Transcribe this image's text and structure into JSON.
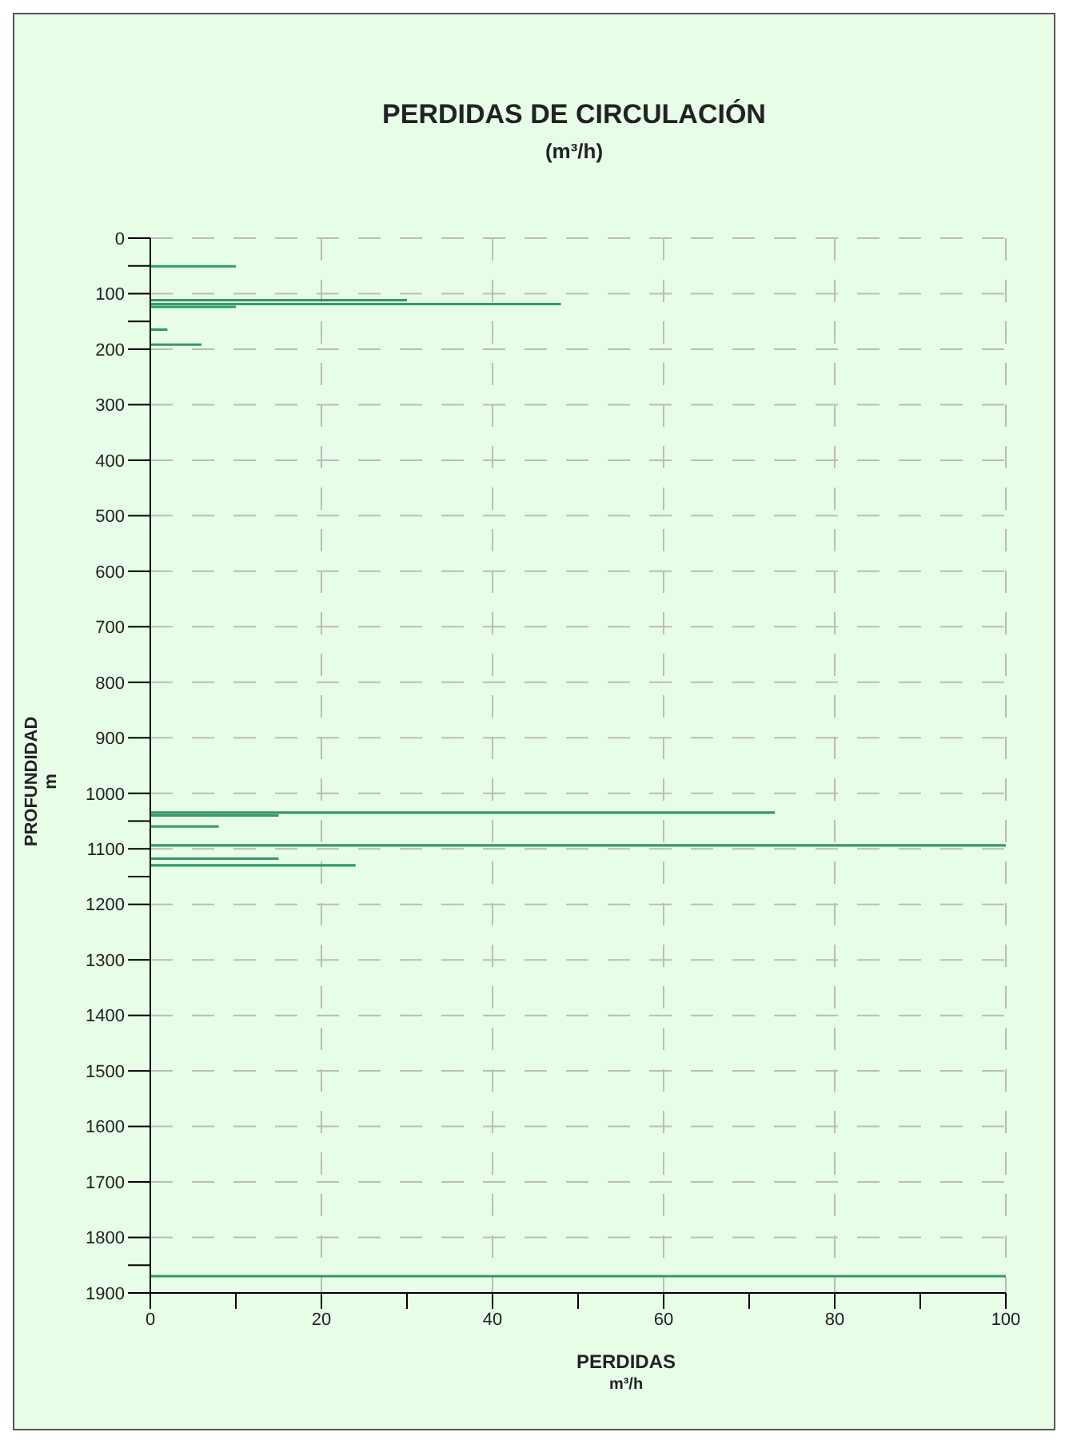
{
  "chart_data": {
    "type": "bar",
    "orientation": "horizontal",
    "title": "PERDIDAS DE CIRCULACIÓN",
    "subtitle": "(m³/h)",
    "xlabel": "PERDIDAS\nm³/h",
    "ylabel": "PROFUNDIDAD\nm",
    "x": [
      51,
      112,
      119,
      124,
      165,
      192,
      1035,
      1040,
      1060,
      1094,
      1118,
      1130,
      1870
    ],
    "values": [
      10,
      30,
      48,
      10,
      2,
      6,
      73,
      15,
      8,
      100,
      15,
      24,
      100
    ],
    "color": "#339966",
    "xlim": [
      0,
      100
    ],
    "xticks": [
      0,
      {
        "value": 10,
        "label": null
      },
      20,
      {
        "value": 30,
        "label": null
      },
      40,
      {
        "value": 50,
        "label": null
      },
      60,
      {
        "value": 70,
        "label": null
      },
      80,
      {
        "value": 90,
        "label": null
      },
      100
    ],
    "ylim": [
      1900,
      0
    ],
    "yticks": [
      0,
      {
        "value": 50,
        "label": null
      },
      100,
      {
        "value": 150,
        "label": null
      },
      200,
      300,
      400,
      500,
      600,
      700,
      800,
      900,
      1000,
      {
        "value": 1050,
        "label": null
      },
      1100,
      {
        "value": 1150,
        "label": null
      },
      1200,
      1300,
      1400,
      1500,
      1600,
      1700,
      1800,
      {
        "value": 1850,
        "label": null
      },
      1900
    ],
    "grid": true
  }
}
